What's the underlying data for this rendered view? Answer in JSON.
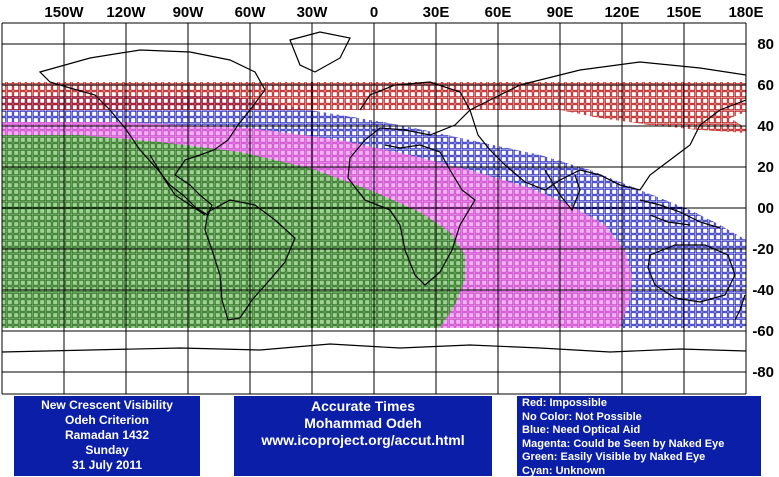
{
  "map": {
    "lon_labels": [
      "150W",
      "120W",
      "90W",
      "60W",
      "30W",
      "0",
      "30E",
      "60E",
      "90E",
      "120E",
      "150E",
      "180E"
    ],
    "lat_labels": [
      "80",
      "60",
      "40",
      "20",
      "00",
      "-20",
      "-40",
      "-60",
      "-80"
    ],
    "zones": {
      "impossible_color": "#b00000",
      "optical_aid_color": "#1a1ab8",
      "naked_eye_maybe_color": "#cc44cc",
      "easily_visible_color": "#2a6a20",
      "cyan_color": "#00cccc"
    },
    "visibility_bands": [
      {
        "category": "impossible",
        "lat_top": 60,
        "lat_bottom": 40,
        "lon_start": -180,
        "lon_end": 180
      },
      {
        "category": "need_optical_aid",
        "lat_top": 48,
        "lat_bottom": -60,
        "lon_start": -180,
        "lon_end": 180
      },
      {
        "category": "could_be_seen_naked_eye",
        "lat_top": 42,
        "lat_bottom": -60,
        "lon_start": -180,
        "lon_end": 140
      },
      {
        "category": "easily_visible",
        "lat_top": 30,
        "lat_bottom": -60,
        "lon_start": -180,
        "lon_end": 48
      }
    ]
  },
  "panels": {
    "left": [
      "New Crescent Visibility",
      "Odeh Criterion",
      "Ramadan 1432",
      "Sunday",
      "31 July 2011"
    ],
    "center": [
      "Accurate Times",
      "Mohammad Odeh",
      "www.icoproject.org/accut.html"
    ],
    "right": [
      "Red: Impossible",
      "No Color: Not Possible",
      "Blue: Need Optical Aid",
      "Magenta: Could be Seen by Naked Eye",
      "Green: Easily Visible by Naked Eye",
      "Cyan: Unknown"
    ]
  }
}
